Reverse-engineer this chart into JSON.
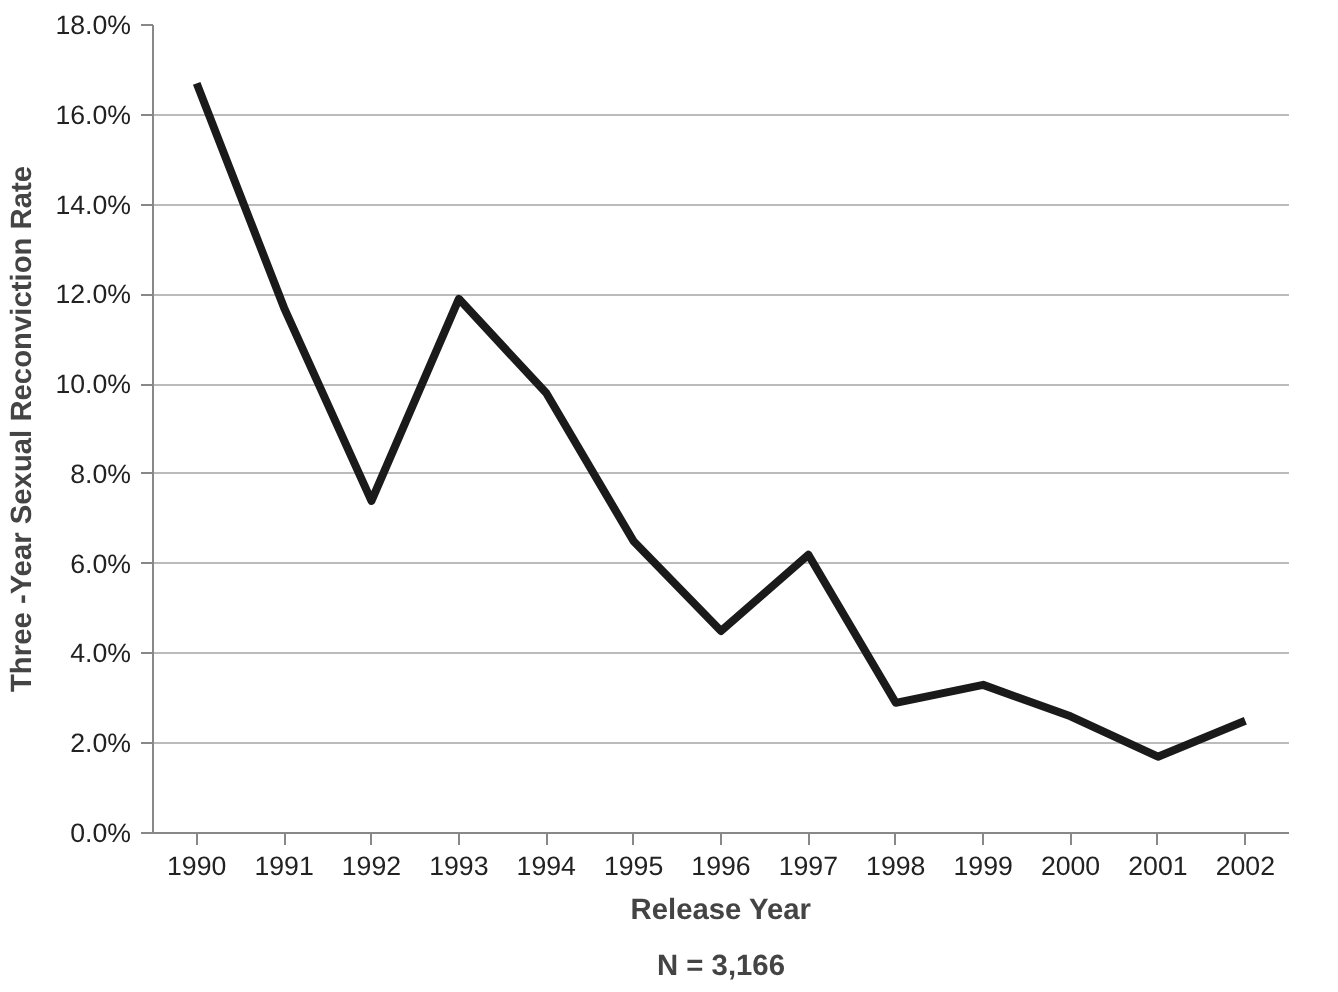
{
  "chart_data": {
    "type": "line",
    "xlabel": "Release Year",
    "ylabel": "Three -Year Sexual Reconviction Rate",
    "annotations": [
      "N = 3,166"
    ],
    "categories": [
      "1990",
      "1991",
      "1992",
      "1993",
      "1994",
      "1995",
      "1996",
      "1997",
      "1998",
      "1999",
      "2000",
      "2001",
      "2002"
    ],
    "series": [
      {
        "color": "#1a1a1a",
        "values": [
          16.7,
          11.7,
          7.4,
          11.9,
          9.8,
          6.5,
          4.5,
          6.2,
          2.9,
          3.3,
          2.6,
          1.7,
          2.5
        ]
      }
    ],
    "ylim": [
      0,
      18
    ],
    "yticks": [
      {
        "value": 0,
        "label": "0.0%"
      },
      {
        "value": 2,
        "label": "2.0%"
      },
      {
        "value": 4,
        "label": "4.0%"
      },
      {
        "value": 6,
        "label": "6.0%"
      },
      {
        "value": 8,
        "label": "8.0%"
      },
      {
        "value": 10,
        "label": "10.0%"
      },
      {
        "value": 12,
        "label": "12.0%"
      },
      {
        "value": 14,
        "label": "14.0%"
      },
      {
        "value": 16,
        "label": "16.0%"
      },
      {
        "value": 18,
        "label": "18.0%"
      }
    ],
    "grid": "y",
    "marker": "none",
    "line_style": "solid"
  }
}
